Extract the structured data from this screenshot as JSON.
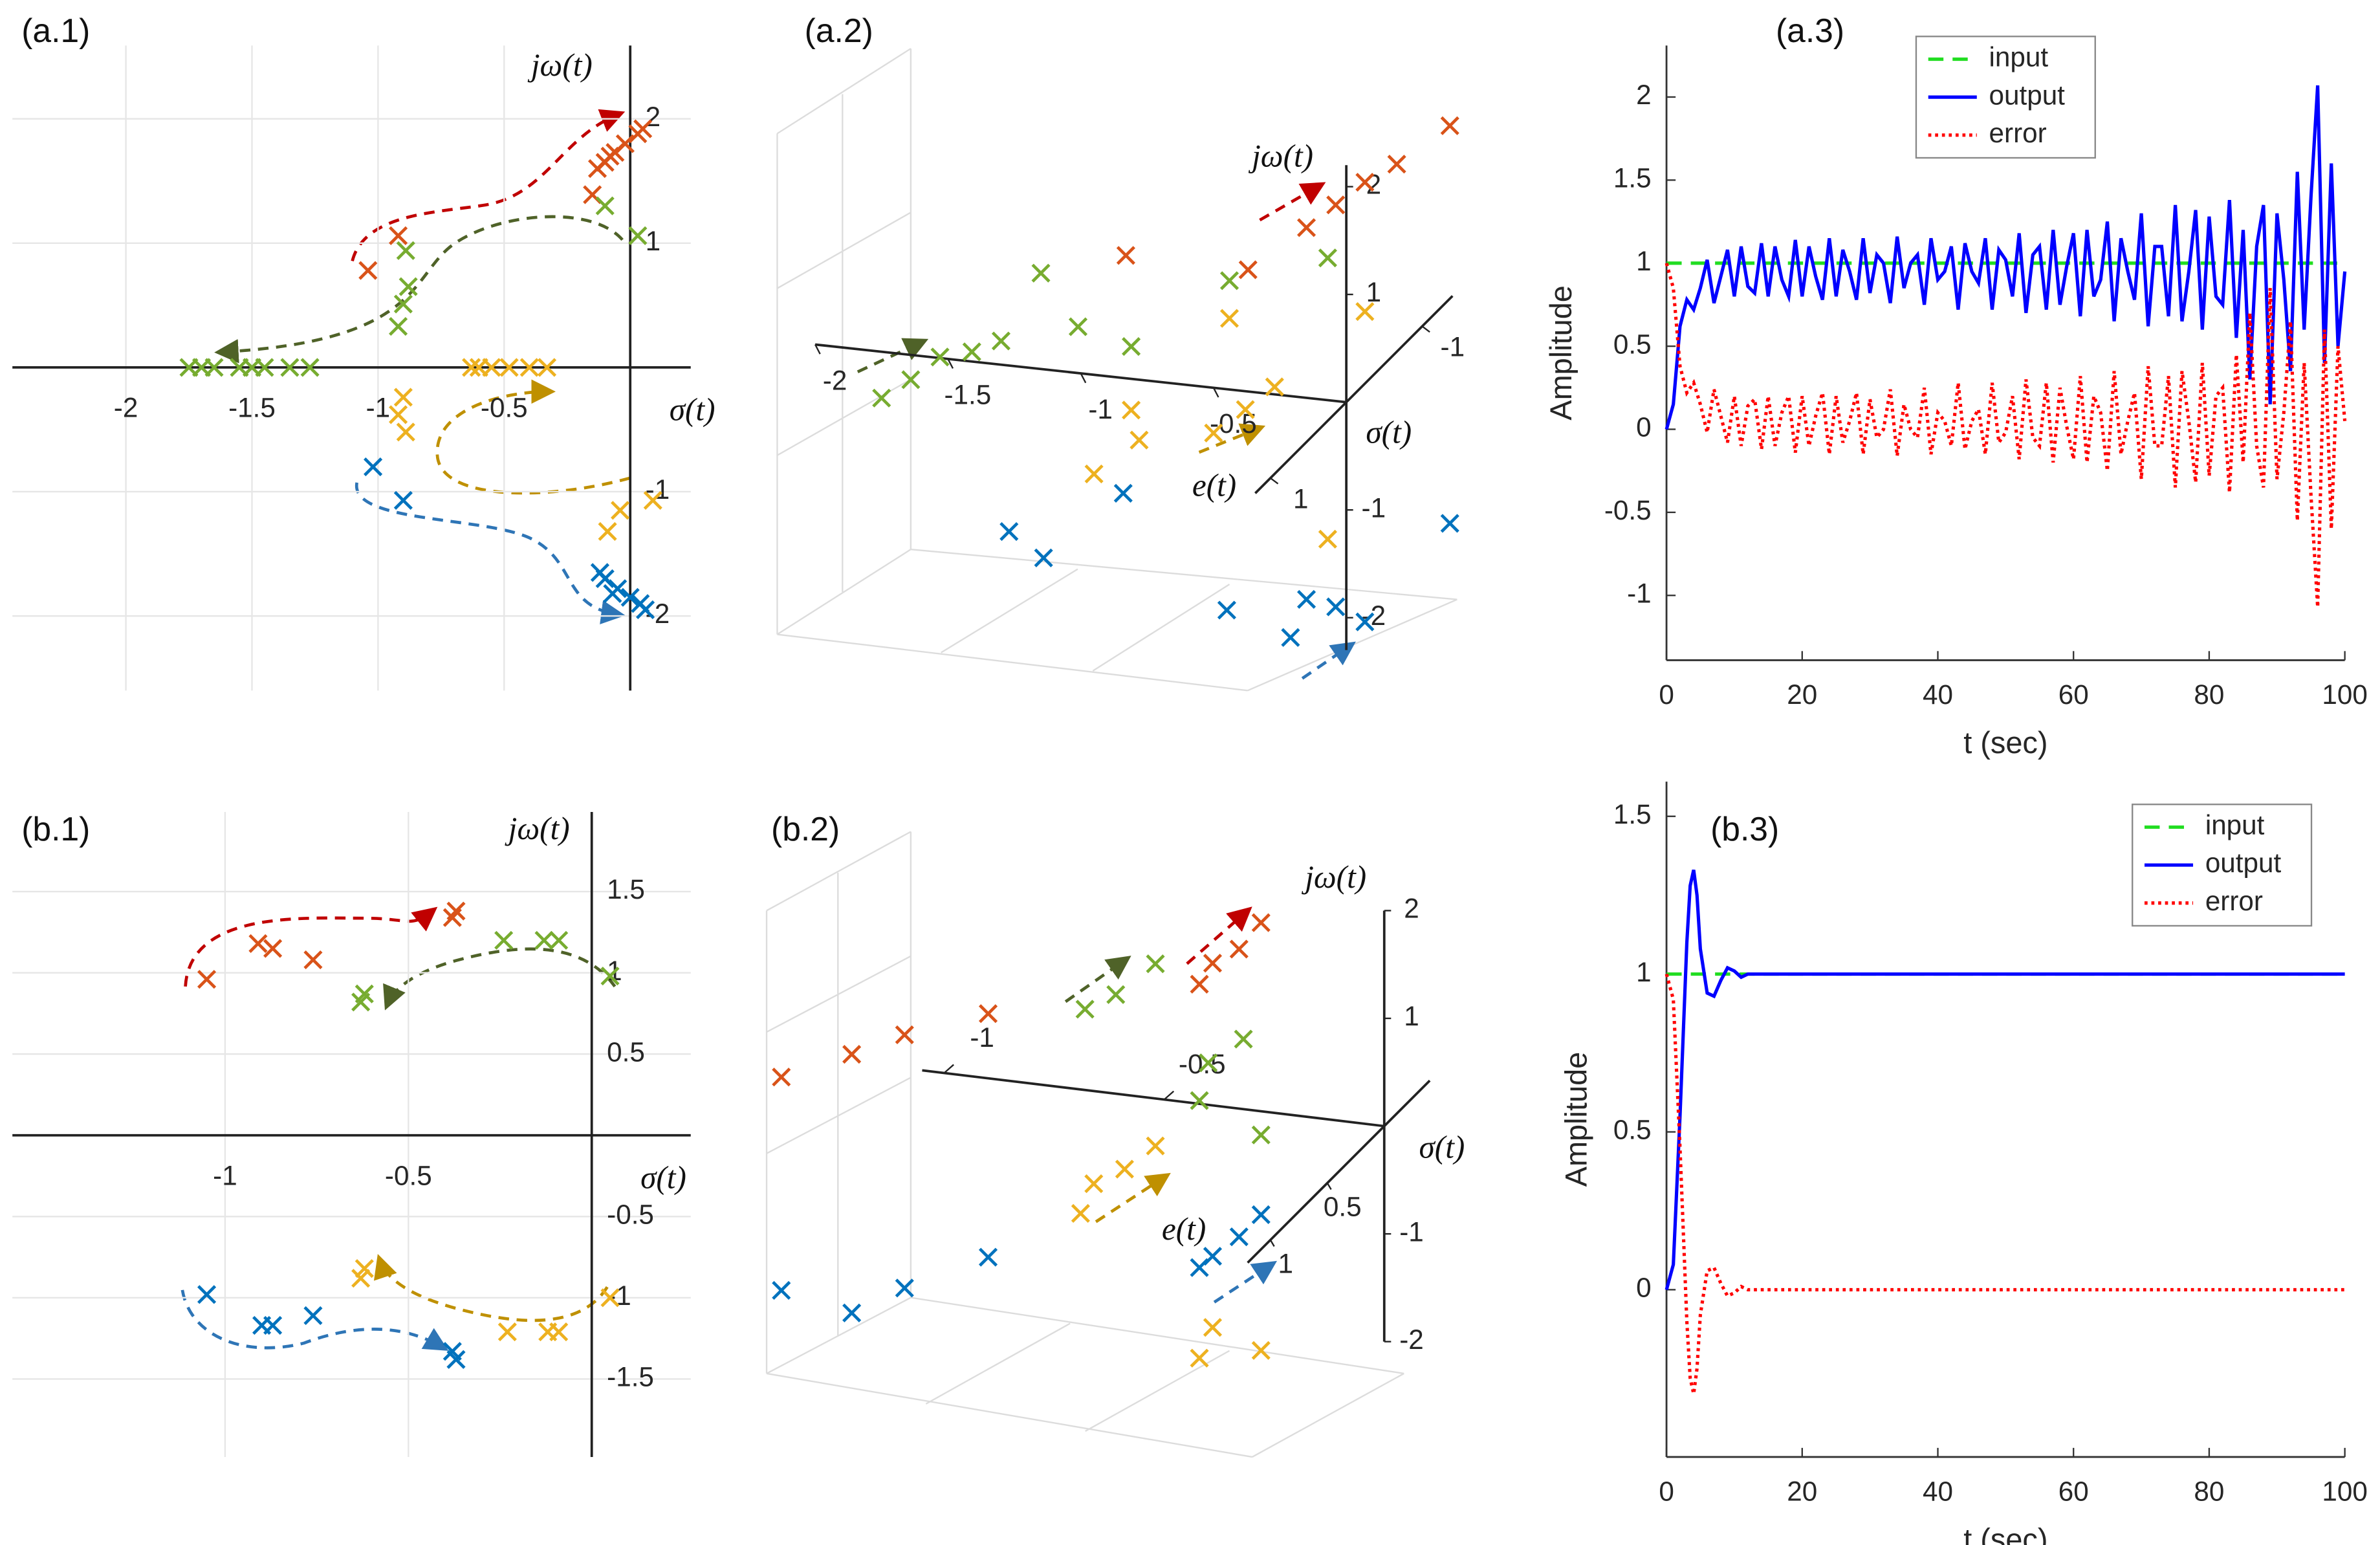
{
  "chart_data": [
    {
      "type": "scatter",
      "panel_label": "(a.1)",
      "xlabel": "σ(t)",
      "ylabel": "jω(t)",
      "xlim": [
        -2.45,
        0.24
      ],
      "ylim": [
        -2.6,
        2.59
      ],
      "xticks": [
        -2,
        -1.5,
        -1,
        -0.5
      ],
      "yticks": [
        -2,
        -1,
        1,
        2
      ],
      "grid": true,
      "series": [
        {
          "color": "#d95319",
          "x": [
            -0.06,
            -0.1,
            -0.02,
            0.03,
            -0.13,
            0.05,
            -0.08,
            -0.15,
            -0.92,
            -1.04
          ],
          "y": [
            1.73,
            1.65,
            1.8,
            1.88,
            1.6,
            1.92,
            1.7,
            1.39,
            1.06,
            0.78
          ]
        },
        {
          "color": "#77ac30",
          "x": [
            0.03,
            -0.1,
            -0.89,
            -0.9,
            -0.92,
            -0.88,
            -1.75,
            -1.65,
            -1.55,
            -1.45,
            -1.35,
            -1.27,
            -1.7,
            -1.5
          ],
          "y": [
            1.06,
            1.3,
            0.94,
            0.51,
            0.33,
            0.65,
            0,
            0,
            0,
            0,
            0,
            0,
            0,
            0
          ]
        },
        {
          "color": "#edb120",
          "x": [
            -0.63,
            -0.55,
            -0.48,
            -0.4,
            -0.33,
            -0.6,
            -0.9,
            -0.89,
            -0.92,
            -0.09,
            0.09,
            -0.04
          ],
          "y": [
            0,
            0,
            0,
            0,
            0,
            0,
            -0.24,
            -0.52,
            -0.38,
            -1.32,
            -1.07,
            -1.15
          ]
        },
        {
          "color": "#0072bd",
          "x": [
            -1.02,
            -0.9,
            -0.1,
            -0.05,
            0,
            0.04,
            -0.12,
            0.06,
            -0.07
          ],
          "y": [
            -0.8,
            -1.07,
            -1.7,
            -1.78,
            -1.85,
            -1.9,
            -1.65,
            -1.95,
            -1.82
          ]
        }
      ]
    },
    {
      "type": "scatter3d",
      "panel_label": "(a.2)",
      "xlabel": "σ(t)",
      "ylabel": "jω(t)",
      "zlabel": "e(t)",
      "xlim": [
        -2,
        0
      ],
      "ylim": [
        -2.3,
        2.2
      ],
      "zlim": [
        -1.4,
        1.2
      ],
      "xticks": [
        -2,
        -1.5,
        -1,
        -0.5
      ],
      "yticks": [
        -2,
        -1,
        1,
        2
      ],
      "zticks": [
        -1,
        1
      ],
      "series": [
        {
          "color": "#d95319",
          "x": [
            -0.15,
            -0.04,
            0.07,
            0.19,
            0.39,
            -0.83,
            -0.37
          ],
          "y": [
            1.58,
            1.82,
            2.06,
            2.26,
            2.67,
            1.14,
            1.13
          ]
        },
        {
          "color": "#77ac30",
          "x": [
            -1.64,
            -1.53,
            -1.41,
            -1.75,
            -1.3,
            -1.15,
            -1.01,
            -0.81,
            -0.44,
            -0.07
          ],
          "y": [
            -0.23,
            0.01,
            0.09,
            -0.43,
            0.22,
            0.89,
            0.43,
            0.3,
            1.01,
            1.32
          ]
        },
        {
          "color": "#edb120",
          "x": [
            -0.5,
            -0.38,
            -0.27,
            -0.81,
            -0.78,
            -0.95,
            0.07,
            -0.44,
            -0.07
          ],
          "y": [
            -0.42,
            -0.17,
            0.07,
            -0.29,
            -0.56,
            -0.92,
            0.86,
            0.66,
            -1.29
          ]
        },
        {
          "color": "#0072bd",
          "x": [
            -0.84,
            -1.27,
            -1.14,
            -0.15,
            -0.04,
            0.07,
            -0.21,
            0.39,
            -0.45
          ],
          "y": [
            -1.07,
            -1.54,
            -1.75,
            -1.87,
            -1.91,
            -2.02,
            -2.24,
            -1.02,
            -2.05
          ]
        }
      ]
    },
    {
      "type": "line",
      "panel_label": "(a.3)",
      "xlabel": "t (sec)",
      "ylabel": "Amplitude",
      "xlim": [
        0,
        100
      ],
      "ylim": [
        -1.39,
        2.31
      ],
      "xticks": [
        0,
        20,
        40,
        60,
        80,
        100
      ],
      "yticks": [
        -1,
        -0.5,
        0,
        0.5,
        1,
        1.5,
        2
      ],
      "legend": "north",
      "x": [
        0,
        1,
        2,
        3,
        4,
        5,
        6,
        7,
        8,
        9,
        10,
        11,
        12,
        13,
        14,
        15,
        16,
        17,
        18,
        19,
        20,
        21,
        22,
        23,
        24,
        25,
        26,
        27,
        28,
        29,
        30,
        31,
        32,
        33,
        34,
        35,
        36,
        37,
        38,
        39,
        40,
        41,
        42,
        43,
        44,
        45,
        46,
        47,
        48,
        49,
        50,
        51,
        52,
        53,
        54,
        55,
        56,
        57,
        58,
        59,
        60,
        61,
        62,
        63,
        64,
        65,
        66,
        67,
        68,
        69,
        70,
        71,
        72,
        73,
        74,
        75,
        76,
        77,
        78,
        79,
        80,
        81,
        82,
        83,
        84,
        85,
        86,
        87,
        88,
        89,
        90,
        91,
        92,
        93,
        94,
        95,
        96,
        97,
        98,
        99,
        100
      ],
      "series": [
        {
          "name": "input",
          "color": "#22dd22",
          "style": "dashed",
          "x": [
            0,
            100
          ],
          "values": [
            1,
            1
          ]
        },
        {
          "name": "output",
          "color": "#0000ff",
          "style": "solid",
          "values": [
            0,
            0.15,
            0.62,
            0.78,
            0.72,
            0.85,
            1.02,
            0.76,
            0.92,
            1.08,
            0.8,
            1.1,
            0.86,
            0.82,
            1.12,
            0.8,
            1.1,
            0.9,
            0.8,
            1.14,
            0.8,
            1.1,
            0.92,
            0.78,
            1.15,
            0.8,
            1.08,
            0.95,
            0.78,
            1.15,
            0.82,
            1.05,
            1.0,
            0.76,
            1.16,
            0.85,
            1.0,
            1.05,
            0.75,
            1.15,
            0.9,
            0.95,
            1.1,
            0.72,
            1.12,
            0.95,
            0.88,
            1.15,
            0.72,
            1.08,
            1.02,
            0.8,
            1.18,
            0.7,
            1.05,
            1.1,
            0.72,
            1.2,
            0.75,
            0.98,
            1.18,
            0.68,
            1.2,
            0.8,
            0.9,
            1.25,
            0.65,
            1.15,
            0.95,
            0.78,
            1.3,
            0.62,
            1.1,
            1.1,
            0.68,
            1.35,
            0.65,
            0.95,
            1.32,
            0.6,
            1.28,
            0.8,
            0.75,
            1.38,
            0.55,
            1.2,
            0.3,
            1.1,
            1.35,
            0.15,
            1.3,
            0.9,
            0.35,
            1.55,
            0.6,
            1.4,
            2.07,
            0.4,
            1.6,
            0.5,
            0.95
          ]
        },
        {
          "name": "error",
          "color": "#ff0000",
          "style": "dotted",
          "values": [
            1,
            0.85,
            0.38,
            0.22,
            0.28,
            0.15,
            -0.02,
            0.24,
            0.08,
            -0.08,
            0.2,
            -0.1,
            0.14,
            0.18,
            -0.12,
            0.2,
            -0.1,
            0.1,
            0.2,
            -0.14,
            0.2,
            -0.1,
            0.08,
            0.22,
            -0.15,
            0.2,
            -0.08,
            0.05,
            0.22,
            -0.15,
            0.18,
            -0.05,
            0,
            0.24,
            -0.16,
            0.15,
            0,
            -0.05,
            0.25,
            -0.15,
            0.1,
            0.05,
            -0.1,
            0.28,
            -0.12,
            0.05,
            0.12,
            -0.15,
            0.28,
            -0.08,
            -0.02,
            0.2,
            -0.18,
            0.3,
            -0.05,
            -0.1,
            0.28,
            -0.2,
            0.25,
            0.02,
            -0.18,
            0.32,
            -0.2,
            0.2,
            0.1,
            -0.25,
            0.35,
            -0.15,
            0.05,
            0.22,
            -0.3,
            0.38,
            -0.1,
            -0.1,
            0.32,
            -0.35,
            0.35,
            0.05,
            -0.32,
            0.4,
            -0.28,
            0.2,
            0.25,
            -0.38,
            0.45,
            -0.2,
            0.7,
            -0.1,
            -0.35,
            0.85,
            -0.3,
            0.1,
            0.65,
            -0.55,
            0.4,
            -0.4,
            -1.07,
            0.6,
            -0.6,
            0.5,
            0.05
          ]
        }
      ]
    },
    {
      "type": "scatter",
      "panel_label": "(b.1)",
      "xlabel": "σ(t)",
      "ylabel": "jω(t)",
      "xlim": [
        -1.58,
        0.27
      ],
      "ylim": [
        -1.98,
        1.99
      ],
      "xticks": [
        -1,
        -0.5
      ],
      "yticks": [
        -1.5,
        -1,
        -0.5,
        0.5,
        1,
        1.5
      ],
      "grid": true,
      "series": [
        {
          "color": "#d95319",
          "x": [
            -1.05,
            -0.91,
            -0.87,
            -0.76,
            -0.38,
            -0.37
          ],
          "y": [
            0.96,
            1.18,
            1.15,
            1.08,
            1.34,
            1.38
          ]
        },
        {
          "color": "#77ac30",
          "x": [
            -0.62,
            -0.63,
            -0.24,
            -0.13,
            -0.09,
            0.05
          ],
          "y": [
            0.87,
            0.82,
            1.2,
            1.2,
            1.2,
            0.98
          ]
        },
        {
          "color": "#edb120",
          "x": [
            -0.63,
            -0.62,
            -0.23,
            -0.12,
            -0.09,
            0.05
          ],
          "y": [
            -0.88,
            -0.82,
            -1.21,
            -1.21,
            -1.21,
            -1.0
          ]
        },
        {
          "color": "#0072bd",
          "x": [
            -1.05,
            -0.9,
            -0.87,
            -0.76,
            -0.38,
            -0.37
          ],
          "y": [
            -0.98,
            -1.17,
            -1.17,
            -1.11,
            -1.33,
            -1.38
          ]
        }
      ]
    },
    {
      "type": "scatter3d",
      "panel_label": "(b.2)",
      "xlabel": "σ(t)",
      "ylabel": "jω(t)",
      "zlabel": "e(t)",
      "xlim": [
        -1.05,
        0
      ],
      "ylim": [
        -2,
        2
      ],
      "zlim": [
        -0.4,
        1.2
      ],
      "xticks": [
        -1,
        -0.5
      ],
      "yticks": [
        -2,
        -1,
        1,
        2
      ],
      "zticks": [
        0.5,
        1
      ],
      "series": [
        {
          "color": "#d95319",
          "x": [
            -1.37,
            -1.21,
            -1.09,
            -0.9,
            -0.39,
            -0.33,
            -0.28,
            -0.42
          ],
          "y": [
            -0.22,
            0.07,
            0.31,
            0.6,
            1.32,
            1.48,
            1.75,
            1.11
          ]
        },
        {
          "color": "#77ac30",
          "x": [
            -0.68,
            -0.61,
            -0.52,
            -0.4,
            -0.32,
            -0.28,
            -0.42
          ],
          "y": [
            0.75,
            0.92,
            1.25,
            0.39,
            0.65,
            -0.22,
            0.03
          ]
        },
        {
          "color": "#edb120",
          "x": [
            -0.66,
            -0.59,
            -0.52,
            -0.69,
            -0.39,
            -0.28,
            -0.42
          ],
          "y": [
            -0.86,
            -0.69,
            -0.44,
            -1.15,
            -2.06,
            -2.22,
            -2.36
          ]
        },
        {
          "color": "#0072bd",
          "x": [
            -1.37,
            -1.21,
            -1.09,
            -0.9,
            -0.39,
            -0.33,
            -0.28,
            -0.42
          ],
          "y": [
            -2.2,
            -2.33,
            -2.04,
            -1.66,
            -1.4,
            -1.19,
            -0.96,
            -1.52
          ]
        }
      ]
    },
    {
      "type": "line",
      "panel_label": "(b.3)",
      "xlabel": "t (sec)",
      "ylabel": "Amplitude",
      "xlim": [
        0,
        100
      ],
      "ylim": [
        -0.53,
        1.61
      ],
      "xticks": [
        0,
        20,
        40,
        60,
        80,
        100
      ],
      "yticks": [
        0,
        0.5,
        1,
        1.5
      ],
      "legend": "northeast",
      "x": [
        0,
        1,
        2,
        3,
        3.5,
        4,
        4.5,
        5,
        6,
        7,
        8,
        9,
        10,
        11,
        12,
        14,
        16,
        20,
        100
      ],
      "series": [
        {
          "name": "input",
          "color": "#22dd22",
          "style": "dashed",
          "x": [
            0,
            100
          ],
          "values": [
            1,
            1
          ]
        },
        {
          "name": "output",
          "color": "#0000ff",
          "style": "solid",
          "values": [
            0,
            0.08,
            0.55,
            1.1,
            1.28,
            1.33,
            1.25,
            1.08,
            0.94,
            0.93,
            0.98,
            1.02,
            1.01,
            0.99,
            1,
            1,
            1,
            1,
            1
          ]
        },
        {
          "name": "error",
          "color": "#ff0000",
          "style": "dotted",
          "values": [
            1,
            0.92,
            0.45,
            -0.1,
            -0.28,
            -0.33,
            -0.25,
            -0.08,
            0.06,
            0.07,
            0.02,
            -0.02,
            -0.01,
            0.01,
            0,
            0,
            0,
            0,
            0
          ]
        }
      ]
    }
  ]
}
